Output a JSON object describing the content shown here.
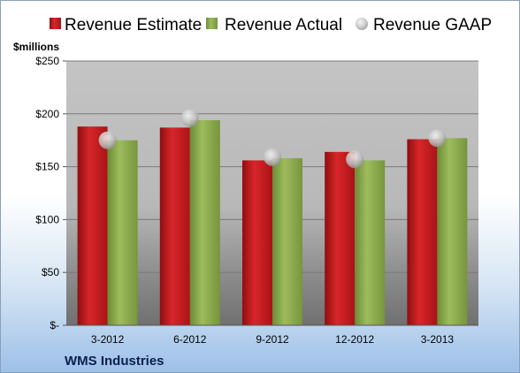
{
  "chart_data": {
    "type": "bar",
    "categories": [
      "3-2012",
      "6-2012",
      "9-2012",
      "12-2012",
      "3-2013"
    ],
    "series": [
      {
        "name": "Revenue Estimate",
        "type": "bar",
        "color": "#c0171b",
        "values": [
          188,
          187,
          156,
          164,
          176
        ]
      },
      {
        "name": "Revenue Actual",
        "type": "bar",
        "color": "#88a84a",
        "values": [
          175,
          194,
          158,
          156,
          177
        ]
      },
      {
        "name": "Revenue GAAP",
        "type": "scatter",
        "color": "#c8c8c8",
        "values": [
          175,
          196,
          159,
          157,
          177
        ]
      }
    ],
    "ylabel": "$millions",
    "ylim": [
      0,
      250
    ],
    "yticks": [
      0,
      50,
      100,
      150,
      200,
      250
    ],
    "ytick_labels": [
      "$-",
      "$50",
      "$100",
      "$150",
      "$200",
      "$250"
    ],
    "grid": true,
    "legend": "top"
  },
  "footer": {
    "company": "WMS Industries"
  }
}
